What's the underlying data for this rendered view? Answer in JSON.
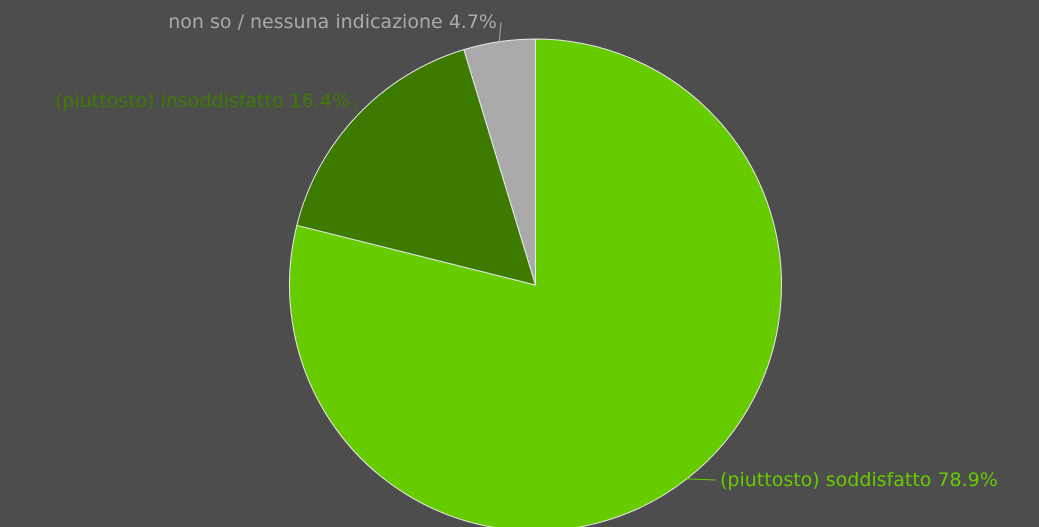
{
  "chart_data": {
    "type": "pie",
    "categories": [
      "(piuttosto) soddisfatto",
      "(piuttosto) insoddisfatto",
      "non so / nessuna indicazione"
    ],
    "values": [
      78.9,
      16.4,
      4.7
    ],
    "value_labels": [
      "78.9%",
      "16.4%",
      "4.7%"
    ],
    "colors": [
      "#66cc00",
      "#3d7a00",
      "#aaaaaa"
    ]
  }
}
